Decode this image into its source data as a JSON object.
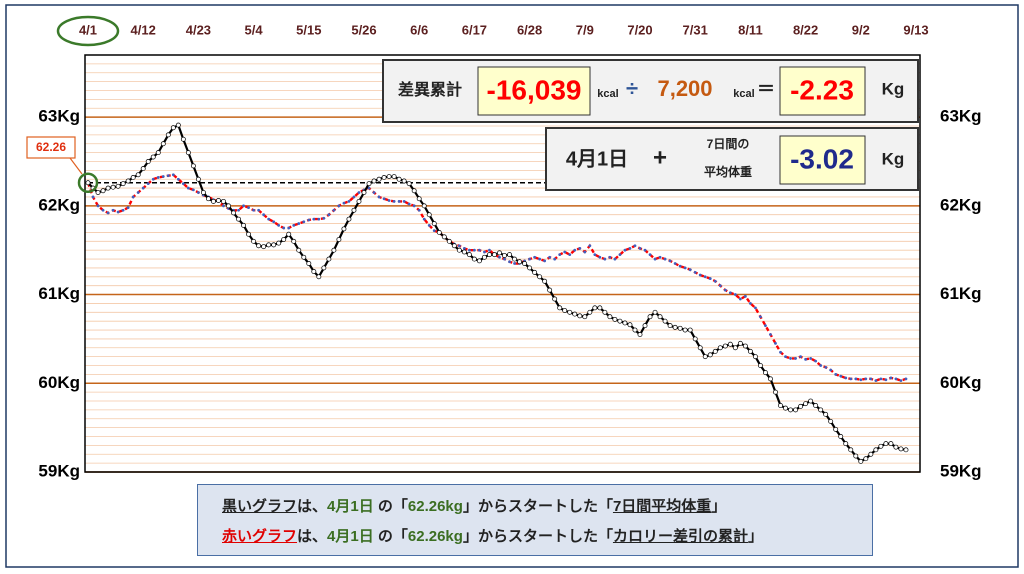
{
  "chart_data": {
    "type": "line",
    "categories": [
      "4/1",
      null,
      null,
      null,
      null,
      null,
      null,
      null,
      null,
      null,
      null,
      "4/12",
      null,
      null,
      null,
      null,
      null,
      null,
      null,
      null,
      null,
      null,
      "4/23",
      null,
      null,
      null,
      null,
      null,
      null,
      null,
      null,
      null,
      null,
      "5/4",
      null,
      null,
      null,
      null,
      null,
      null,
      null,
      null,
      null,
      null,
      "5/15",
      null,
      null,
      null,
      null,
      null,
      null,
      null,
      null,
      null,
      null,
      "5/26",
      null,
      null,
      null,
      null,
      null,
      null,
      null,
      null,
      null,
      null,
      "6/6",
      null,
      null,
      null,
      null,
      null,
      null,
      null,
      null,
      null,
      null,
      "6/17",
      null,
      null,
      null,
      null,
      null,
      null,
      null,
      null,
      null,
      null,
      "6/28",
      null,
      null,
      null,
      null,
      null,
      null,
      null,
      null,
      null,
      null,
      "7/9",
      null,
      null,
      null,
      null,
      null,
      null,
      null,
      null,
      null,
      null,
      "7/20",
      null,
      null,
      null,
      null,
      null,
      null,
      null,
      null,
      null,
      null,
      "7/31",
      null,
      null,
      null,
      null,
      null,
      null,
      null,
      null,
      null,
      null,
      "8/11",
      null,
      null,
      null,
      null,
      null,
      null,
      null,
      null,
      null,
      null,
      "8/22",
      null,
      null,
      null,
      null,
      null,
      null,
      null,
      null,
      null,
      null,
      "9/2",
      null,
      null,
      null,
      null,
      null,
      null,
      null,
      null,
      null,
      null,
      "9/13"
    ],
    "series": [
      {
        "name": "赤いグラフ",
        "color": "#ff0000",
        "marker_color": "#4060c0",
        "values": [
          62.26,
          62.1,
          62.0,
          61.95,
          61.92,
          61.95,
          61.93,
          61.95,
          61.98,
          62.1,
          62.15,
          62.2,
          62.25,
          62.3,
          62.32,
          62.33,
          62.34,
          62.35,
          62.3,
          62.25,
          62.2,
          62.18,
          62.15,
          62.12,
          62.1,
          62.07,
          62.05,
          62.0,
          61.97,
          61.95,
          61.95,
          62.0,
          61.98,
          61.95,
          61.95,
          61.9,
          61.85,
          61.82,
          61.78,
          61.75,
          61.75,
          61.78,
          61.8,
          61.82,
          61.84,
          61.85,
          61.85,
          61.86,
          61.9,
          61.95,
          62.0,
          62.03,
          62.05,
          62.1,
          62.15,
          62.18,
          62.2,
          62.15,
          62.1,
          62.08,
          62.06,
          62.05,
          62.05,
          62.05,
          62.02,
          62.0,
          61.95,
          61.85,
          61.78,
          61.72,
          61.7,
          61.65,
          61.6,
          61.57,
          61.55,
          61.52,
          61.5,
          61.5,
          61.5,
          61.48,
          61.5,
          61.45,
          61.42,
          61.4,
          61.37,
          61.35,
          61.35,
          61.38,
          61.4,
          61.42,
          61.4,
          61.38,
          61.42,
          61.4,
          61.45,
          61.48,
          61.45,
          61.5,
          61.52,
          61.48,
          61.55,
          61.45,
          61.42,
          61.4,
          61.42,
          61.4,
          61.45,
          61.5,
          61.52,
          61.55,
          61.52,
          61.5,
          61.45,
          61.4,
          61.42,
          61.4,
          61.38,
          61.35,
          61.32,
          61.3,
          61.28,
          61.25,
          61.22,
          61.2,
          61.18,
          61.15,
          61.1,
          61.05,
          61.02,
          61.0,
          60.95,
          60.98,
          60.9,
          60.85,
          60.75,
          60.65,
          60.55,
          60.45,
          60.35,
          60.3,
          60.28,
          60.28,
          60.3,
          60.27,
          60.28,
          60.25,
          60.2,
          60.18,
          60.15,
          60.1,
          60.08,
          60.06,
          60.05,
          60.05,
          60.04,
          60.05,
          60.05,
          60.03,
          60.05,
          60.04,
          60.06,
          60.05,
          60.03,
          60.05,
          null,
          null
        ]
      },
      {
        "name": "黒いグラフ",
        "color": "#000000",
        "marker_color": "#ffffff",
        "values": [
          62.26,
          62.2,
          62.15,
          62.17,
          62.2,
          62.21,
          62.22,
          62.25,
          62.28,
          62.32,
          62.35,
          62.42,
          62.5,
          62.55,
          62.6,
          62.7,
          62.8,
          62.88,
          62.91,
          62.75,
          62.6,
          62.45,
          62.3,
          62.15,
          62.08,
          62.05,
          62.06,
          62.05,
          62.0,
          61.92,
          61.85,
          61.78,
          61.68,
          61.6,
          61.55,
          61.54,
          61.56,
          61.56,
          61.58,
          61.62,
          61.68,
          61.6,
          61.5,
          61.42,
          61.35,
          61.26,
          61.2,
          61.3,
          61.4,
          61.5,
          61.62,
          61.74,
          61.85,
          61.95,
          62.05,
          62.15,
          62.25,
          62.28,
          62.3,
          62.32,
          62.33,
          62.33,
          62.3,
          62.28,
          62.25,
          62.17,
          62.08,
          62.0,
          61.9,
          61.8,
          61.7,
          61.65,
          61.6,
          61.55,
          61.5,
          61.48,
          61.45,
          61.4,
          61.38,
          61.42,
          61.45,
          61.45,
          61.47,
          61.44,
          61.45,
          61.4,
          61.37,
          61.35,
          61.3,
          61.25,
          61.2,
          61.15,
          61.05,
          60.95,
          60.85,
          60.82,
          60.8,
          60.78,
          60.76,
          60.75,
          60.8,
          60.85,
          60.85,
          60.8,
          60.75,
          60.72,
          60.7,
          60.68,
          60.66,
          60.6,
          60.55,
          60.65,
          60.75,
          60.8,
          60.75,
          60.7,
          60.65,
          60.63,
          60.62,
          60.6,
          60.6,
          60.5,
          60.4,
          60.3,
          60.32,
          60.36,
          60.4,
          60.42,
          60.44,
          60.4,
          60.45,
          60.42,
          60.36,
          60.3,
          60.2,
          60.12,
          60.05,
          59.9,
          59.75,
          59.72,
          59.7,
          59.7,
          59.74,
          59.77,
          59.8,
          59.75,
          59.7,
          59.65,
          59.57,
          59.48,
          59.4,
          59.32,
          59.25,
          59.18,
          59.12,
          59.15,
          59.2,
          59.25,
          59.29,
          59.32,
          59.32,
          59.28,
          59.26,
          59.25,
          null,
          null
        ]
      }
    ],
    "ylim": [
      59,
      63.7
    ],
    "yticks": [
      {
        "value": 59,
        "label": "59Kg"
      },
      {
        "value": 60,
        "label": "60Kg"
      },
      {
        "value": 61,
        "label": "61Kg"
      },
      {
        "value": 62,
        "label": "62Kg"
      },
      {
        "value": 63,
        "label": "63Kg"
      }
    ],
    "grid": true,
    "minor_grid_step": 0.1,
    "reference_line": {
      "value": 62.26,
      "label": "62.26"
    }
  },
  "summary": {
    "label": "差異累計",
    "total": "-16,039",
    "unit1": "kcal",
    "divide": "÷",
    "divisor": "7,200",
    "unit2": "kcal",
    "equals": "＝",
    "result": "-2.23",
    "result_unit": "Kg"
  },
  "average": {
    "date": "4月1日",
    "plus": "+",
    "label1": "7日間の",
    "label2": "平均体重",
    "value": "-3.02",
    "unit": "Kg"
  },
  "notes": [
    {
      "parts": [
        "は、",
        "4月1日",
        " の「",
        "62.26kg",
        "」からスタートした「",
        "7日間平均体重",
        "」"
      ]
    },
    {
      "parts": [
        "は、",
        "4月1日",
        " の「",
        "62.26kg",
        "」からスタートした「",
        "カロリー差引の累計",
        "」"
      ]
    }
  ]
}
